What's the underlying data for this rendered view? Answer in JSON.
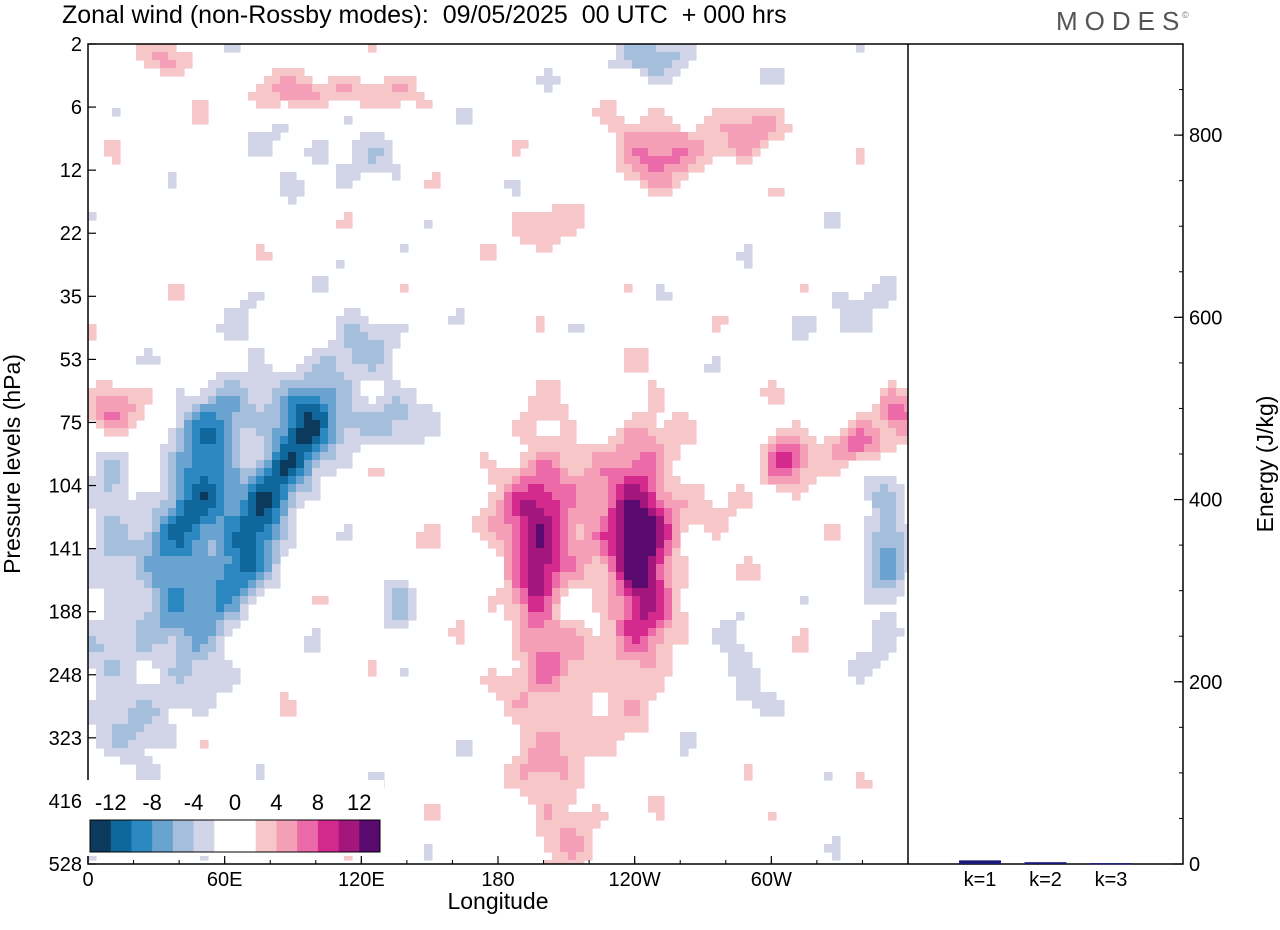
{
  "title": "Zonal wind (non-Rossby modes):  09/05/2025  00 UTC  + 000 hrs",
  "logo": "MODES",
  "logo_mark": "©",
  "chart_data": [
    {
      "type": "heatmap",
      "title": "Zonal wind (non-Rossby modes):  09/05/2025  00 UTC  + 000 hrs",
      "xlabel": "Longitude",
      "ylabel": "Pressure levels (hPa)",
      "x_ticks": [
        "0",
        "60E",
        "120E",
        "180",
        "120W",
        "60W"
      ],
      "x_tick_values": [
        0,
        60,
        120,
        180,
        240,
        300
      ],
      "xlim": [
        0,
        360
      ],
      "y_ticks": [
        "2",
        "6",
        "12",
        "22",
        "35",
        "53",
        "75",
        "104",
        "141",
        "188",
        "248",
        "323",
        "416",
        "528"
      ],
      "y_scale": "pressure levels (top to bottom)",
      "colorbar": {
        "labels": [
          "-12",
          "-8",
          "-4",
          "0",
          "4",
          "8",
          "12"
        ],
        "colors": [
          "#0c3a5c",
          "#0f679c",
          "#2c88c1",
          "#6aa3cf",
          "#a4bedc",
          "#d2d5e7",
          "#ffffff",
          "#ffffff",
          "#f7c6c8",
          "#f49fb6",
          "#ec6aa7",
          "#d42a8e",
          "#a3177c",
          "#5a0a6e"
        ],
        "levels": [
          -14,
          -12,
          -10,
          -8,
          -6,
          -4,
          -2,
          0,
          2,
          4,
          6,
          8,
          10,
          12,
          14
        ]
      },
      "features": [
        {
          "lon": 55,
          "level_index": 7.8,
          "value": -10
        },
        {
          "lon": 88,
          "level_index": 7.8,
          "value": -11
        },
        {
          "lon": 200,
          "level_index": 8.5,
          "value": 8
        },
        {
          "lon": 245,
          "level_index": 8.5,
          "value": 12
        },
        {
          "lon": 318,
          "level_index": 7.0,
          "value": 8
        },
        {
          "lon": 342,
          "level_index": 7.0,
          "value": 6
        },
        {
          "lon": 5,
          "level_index": 6.7,
          "value": 6
        },
        {
          "lon": 355,
          "level_index": 8.8,
          "value": -6
        },
        {
          "lon": 240,
          "level_index": 1.6,
          "value": 6
        }
      ]
    },
    {
      "type": "bar",
      "categories": [
        "k=1",
        "k=2",
        "k=3"
      ],
      "values": [
        4,
        2,
        1
      ],
      "ylabel": "Energy (J/kg)",
      "ylim": [
        0,
        900
      ],
      "y_ticks": [
        0,
        200,
        400,
        600,
        800
      ],
      "bar_color": "#1a1a7a"
    }
  ]
}
